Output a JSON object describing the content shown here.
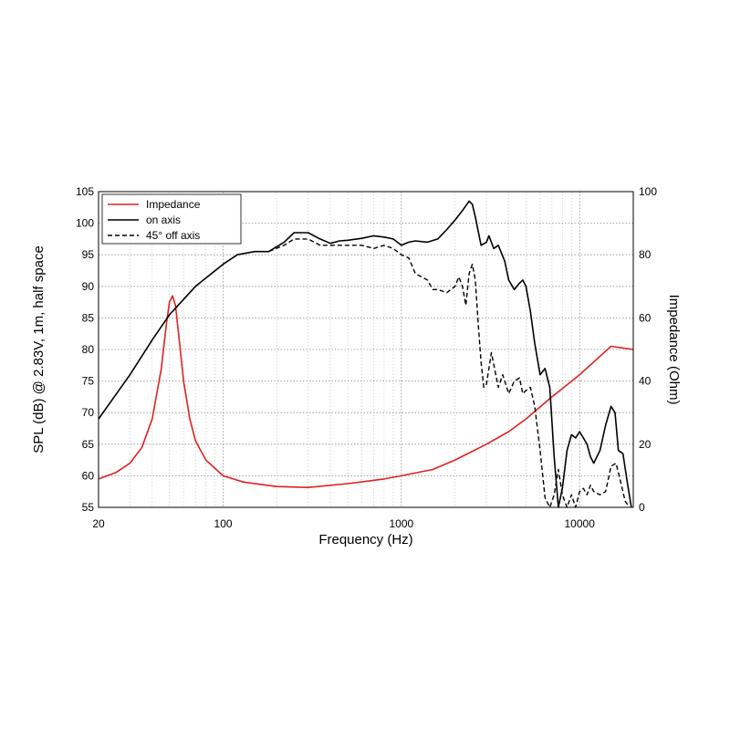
{
  "chart_data": {
    "type": "line",
    "xlabel": "Frequency (Hz)",
    "ylabel": "SPL (dB) @ 2.83V, 1m, half space",
    "y2label": "Impedance (Ohm)",
    "xscale": "log",
    "xlim": [
      20,
      20000
    ],
    "ylim": [
      55,
      105
    ],
    "y2lim": [
      0,
      100
    ],
    "grid": true,
    "legend_position": "top-left",
    "x_ticks": [
      {
        "value": 20,
        "label": "20"
      },
      {
        "value": 100,
        "label": "100"
      },
      {
        "value": 1000,
        "label": "1000"
      },
      {
        "value": 10000,
        "label": "10000"
      }
    ],
    "y_ticks": [
      {
        "value": 55,
        "label": "55"
      },
      {
        "value": 60,
        "label": "60"
      },
      {
        "value": 65,
        "label": "65"
      },
      {
        "value": 70,
        "label": "70"
      },
      {
        "value": 75,
        "label": "75"
      },
      {
        "value": 80,
        "label": "80"
      },
      {
        "value": 85,
        "label": "85"
      },
      {
        "value": 90,
        "label": "90"
      },
      {
        "value": 95,
        "label": "95"
      },
      {
        "value": 100,
        "label": "100"
      },
      {
        "value": 105,
        "label": "105"
      }
    ],
    "y2_ticks": [
      {
        "value": 0,
        "label": "0"
      },
      {
        "value": 20,
        "label": "20"
      },
      {
        "value": 40,
        "label": "40"
      },
      {
        "value": 60,
        "label": "60"
      },
      {
        "value": 80,
        "label": "80"
      },
      {
        "value": 100,
        "label": "100"
      }
    ],
    "series": [
      {
        "name": "Impedance",
        "axis": "right",
        "color": "#e02020",
        "style": "solid",
        "points": [
          [
            20,
            9
          ],
          [
            25,
            11
          ],
          [
            30,
            14
          ],
          [
            35,
            19
          ],
          [
            40,
            28
          ],
          [
            45,
            44
          ],
          [
            48,
            58
          ],
          [
            50,
            65
          ],
          [
            52,
            67
          ],
          [
            54,
            64
          ],
          [
            57,
            52
          ],
          [
            60,
            40
          ],
          [
            65,
            28
          ],
          [
            70,
            21
          ],
          [
            80,
            15
          ],
          [
            100,
            10
          ],
          [
            130,
            8
          ],
          [
            200,
            6.6
          ],
          [
            300,
            6.3
          ],
          [
            500,
            7.5
          ],
          [
            800,
            9
          ],
          [
            1000,
            10
          ],
          [
            1500,
            12
          ],
          [
            2000,
            15
          ],
          [
            3000,
            20
          ],
          [
            4000,
            24
          ],
          [
            5000,
            28
          ],
          [
            7000,
            35
          ],
          [
            10000,
            42
          ],
          [
            15000,
            51
          ],
          [
            20000,
            50
          ]
        ]
      },
      {
        "name": "on axis",
        "axis": "left",
        "color": "#000000",
        "style": "solid",
        "points": [
          [
            20,
            69
          ],
          [
            30,
            76
          ],
          [
            40,
            81.5
          ],
          [
            50,
            85.5
          ],
          [
            70,
            90
          ],
          [
            100,
            93.5
          ],
          [
            120,
            95
          ],
          [
            150,
            95.5
          ],
          [
            180,
            95.5
          ],
          [
            220,
            97
          ],
          [
            250,
            98.5
          ],
          [
            300,
            98.5
          ],
          [
            350,
            97.5
          ],
          [
            400,
            96.8
          ],
          [
            450,
            97.2
          ],
          [
            500,
            97.3
          ],
          [
            600,
            97.6
          ],
          [
            700,
            98
          ],
          [
            800,
            97.8
          ],
          [
            900,
            97.5
          ],
          [
            1000,
            96.5
          ],
          [
            1100,
            97
          ],
          [
            1200,
            97.2
          ],
          [
            1400,
            97
          ],
          [
            1600,
            97.5
          ],
          [
            1800,
            99
          ],
          [
            2000,
            100.5
          ],
          [
            2200,
            102
          ],
          [
            2400,
            103.5
          ],
          [
            2500,
            103
          ],
          [
            2600,
            101
          ],
          [
            2800,
            96.5
          ],
          [
            3000,
            97
          ],
          [
            3100,
            98
          ],
          [
            3300,
            96
          ],
          [
            3500,
            96.5
          ],
          [
            3800,
            94
          ],
          [
            4000,
            91
          ],
          [
            4300,
            89.5
          ],
          [
            4600,
            90.5
          ],
          [
            4800,
            91
          ],
          [
            5000,
            90
          ],
          [
            5300,
            86
          ],
          [
            5600,
            81
          ],
          [
            6000,
            76
          ],
          [
            6400,
            77
          ],
          [
            6800,
            74
          ],
          [
            7200,
            63
          ],
          [
            7600,
            55
          ],
          [
            8000,
            58
          ],
          [
            8500,
            64
          ],
          [
            9000,
            66.5
          ],
          [
            9500,
            66
          ],
          [
            10000,
            67
          ],
          [
            10500,
            66
          ],
          [
            11000,
            65
          ],
          [
            11500,
            63
          ],
          [
            12000,
            62
          ],
          [
            13000,
            64
          ],
          [
            14000,
            68
          ],
          [
            15000,
            71
          ],
          [
            15800,
            70
          ],
          [
            16500,
            64
          ],
          [
            17500,
            63.5
          ],
          [
            18500,
            59
          ],
          [
            19500,
            55
          ]
        ]
      },
      {
        "name": "45° off axis",
        "axis": "left",
        "color": "#000000",
        "style": "dashed",
        "points": [
          [
            150,
            95.5
          ],
          [
            180,
            95.5
          ],
          [
            220,
            96.5
          ],
          [
            250,
            97.5
          ],
          [
            300,
            97.5
          ],
          [
            350,
            96.5
          ],
          [
            400,
            96.5
          ],
          [
            450,
            96.5
          ],
          [
            500,
            96.5
          ],
          [
            600,
            96.5
          ],
          [
            700,
            96
          ],
          [
            800,
            96.5
          ],
          [
            900,
            96
          ],
          [
            1000,
            95
          ],
          [
            1100,
            94.5
          ],
          [
            1200,
            92
          ],
          [
            1300,
            91.5
          ],
          [
            1400,
            91
          ],
          [
            1500,
            89.5
          ],
          [
            1600,
            89.5
          ],
          [
            1800,
            89
          ],
          [
            2000,
            90
          ],
          [
            2100,
            91.5
          ],
          [
            2200,
            90
          ],
          [
            2300,
            87
          ],
          [
            2400,
            92
          ],
          [
            2500,
            93.5
          ],
          [
            2600,
            91
          ],
          [
            2700,
            84
          ],
          [
            2800,
            78
          ],
          [
            2900,
            74
          ],
          [
            3000,
            74.5
          ],
          [
            3200,
            79.5
          ],
          [
            3500,
            74
          ],
          [
            3700,
            76
          ],
          [
            4000,
            73
          ],
          [
            4300,
            75
          ],
          [
            4600,
            75.5
          ],
          [
            4800,
            73
          ],
          [
            5000,
            73.5
          ],
          [
            5300,
            74
          ],
          [
            5600,
            71
          ],
          [
            6000,
            64
          ],
          [
            6400,
            56.5
          ],
          [
            6800,
            55
          ],
          [
            7200,
            57
          ],
          [
            7600,
            61
          ],
          [
            8000,
            57
          ],
          [
            8500,
            55
          ],
          [
            9000,
            57
          ],
          [
            9500,
            55
          ],
          [
            10000,
            57.5
          ],
          [
            10500,
            58
          ],
          [
            11000,
            57
          ],
          [
            11500,
            58.5
          ],
          [
            12000,
            57.5
          ],
          [
            13000,
            57
          ],
          [
            14000,
            57.5
          ],
          [
            15000,
            61.5
          ],
          [
            16000,
            62
          ],
          [
            17000,
            59
          ],
          [
            18000,
            56
          ],
          [
            19000,
            55
          ]
        ]
      }
    ]
  }
}
